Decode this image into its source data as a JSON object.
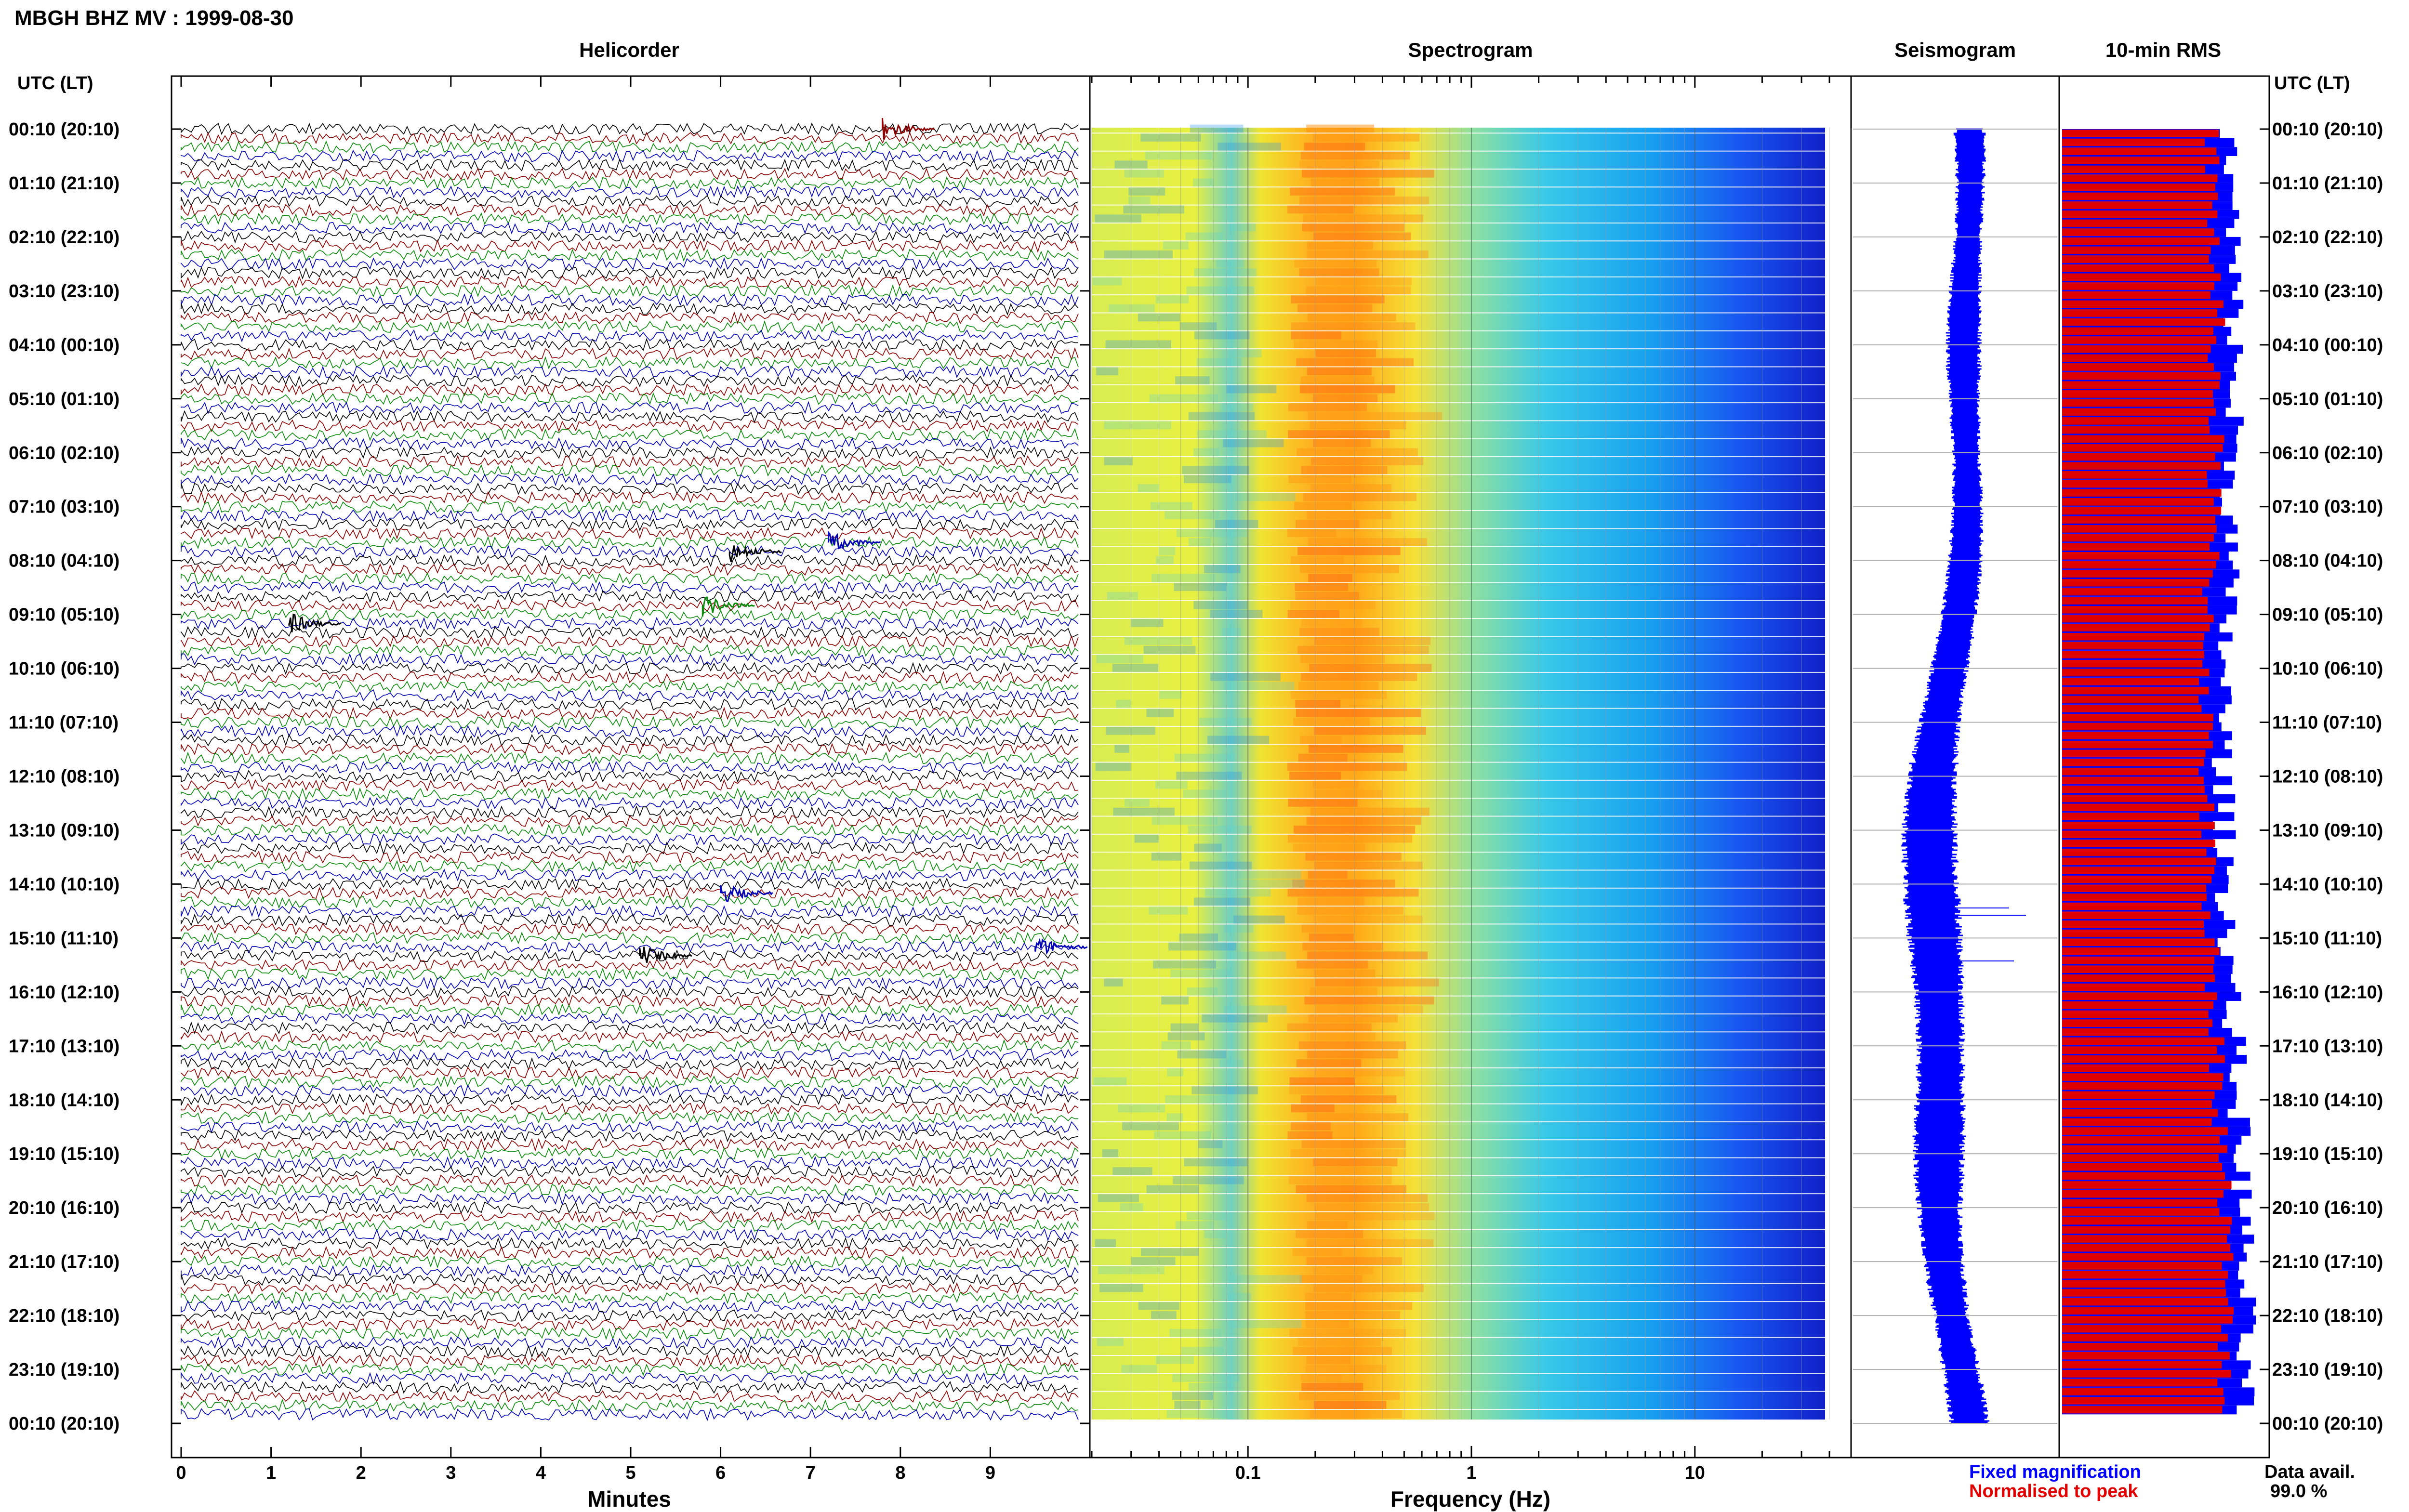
{
  "header": {
    "title": "MBGH BHZ MV : 1999-08-30"
  },
  "panels": {
    "helicorder": "Helicorder",
    "spectrogram": "Spectrogram",
    "seismogram": "Seismogram",
    "rms": "10-min RMS"
  },
  "time_axis": {
    "label_left": "UTC (LT)",
    "label_right": "UTC (LT)",
    "ticks": [
      "00:10 (20:10)",
      "01:10 (21:10)",
      "02:10 (22:10)",
      "03:10 (23:10)",
      "04:10 (00:10)",
      "05:10 (01:10)",
      "06:10 (02:10)",
      "07:10 (03:10)",
      "08:10 (04:10)",
      "09:10 (05:10)",
      "10:10 (06:10)",
      "11:10 (07:10)",
      "12:10 (08:10)",
      "13:10 (09:10)",
      "14:10 (10:10)",
      "15:10 (11:10)",
      "16:10 (12:10)",
      "17:10 (13:10)",
      "18:10 (14:10)",
      "19:10 (15:10)",
      "20:10 (16:10)",
      "21:10 (17:10)",
      "22:10 (18:10)",
      "23:10 (19:10)",
      "00:10 (20:10)"
    ]
  },
  "legend": {
    "fixed_magnification": "Fixed magnification",
    "normalised_to_peak": "Normalised to peak",
    "data_avail_label": "Data avail.",
    "data_avail_value": "99.0 %"
  },
  "colors": {
    "trace_cycle": [
      "#000000",
      "#8b0000",
      "#0a8a0a",
      "#0000b4"
    ],
    "fixed": "#0000ff",
    "normalised": "#e00000"
  },
  "chart_data": [
    {
      "type": "line",
      "title": "Helicorder",
      "xlabel": "Minutes",
      "xlim": [
        0,
        10
      ],
      "xticks": [
        0,
        1,
        2,
        3,
        4,
        5,
        6,
        7,
        8,
        9
      ],
      "rows_per_hour": 6,
      "row_count": 144,
      "events": [
        {
          "time": "00:10",
          "minute": 7.8,
          "color": "#8b0000"
        },
        {
          "time": "07:50",
          "minute": 7.2,
          "color": "#0000b4"
        },
        {
          "time": "08:00",
          "minute": 6.1,
          "color": "#000000"
        },
        {
          "time": "09:00",
          "minute": 5.8,
          "color": "#0a8a0a"
        },
        {
          "time": "09:20",
          "minute": 1.2,
          "color": "#000000"
        },
        {
          "time": "14:20",
          "minute": 6.0,
          "color": "#0000b4"
        },
        {
          "time": "15:30",
          "minute": 5.1,
          "color": "#000000"
        },
        {
          "time": "15:20",
          "minute": 9.5,
          "color": "#0000b4"
        }
      ]
    },
    {
      "type": "heatmap",
      "title": "Spectrogram",
      "xlabel": "Frequency (Hz)",
      "xscale": "log",
      "xlim": [
        0.02,
        50
      ],
      "xticks": [
        0.1,
        1,
        10
      ],
      "peak_band_hz": [
        0.15,
        0.5
      ],
      "colormap": "jet"
    },
    {
      "type": "line",
      "title": "Seismogram",
      "envelope_amplitude": [
        0.35,
        0.32,
        0.3,
        0.36,
        0.4,
        0.35,
        0.3,
        0.34,
        0.38,
        0.4,
        0.42,
        0.45,
        0.55,
        0.6,
        0.62,
        0.6,
        0.55,
        0.52,
        0.55,
        0.58,
        0.5,
        0.45,
        0.4,
        0.42,
        0.44
      ]
    },
    {
      "type": "bar",
      "title": "10-min RMS",
      "orientation": "horizontal",
      "series": [
        {
          "name": "Fixed magnification",
          "color": "#0000ff"
        },
        {
          "name": "Normalised to peak",
          "color": "#e00000"
        }
      ]
    }
  ]
}
